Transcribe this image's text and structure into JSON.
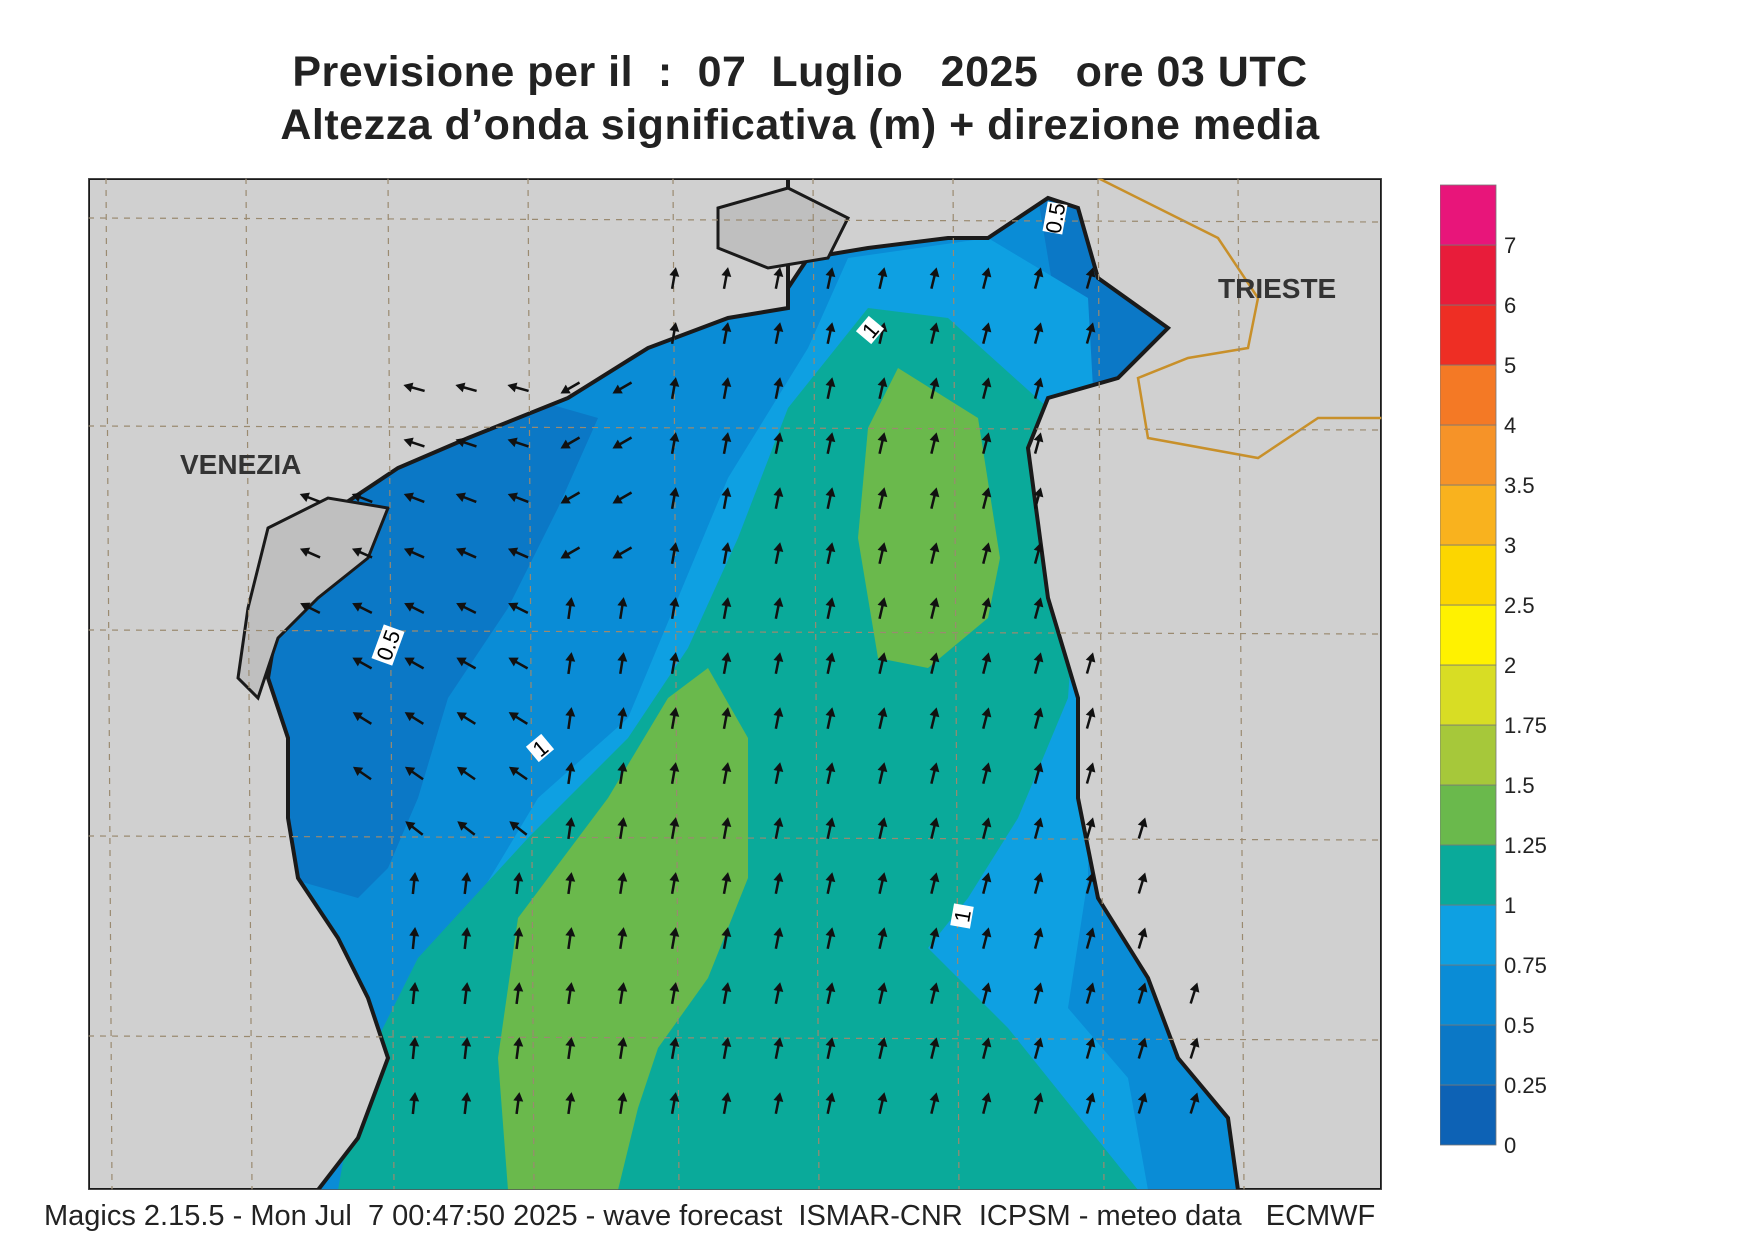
{
  "title": {
    "line1": "Previsione per il  :  07  Luglio   2025   ore 03 UTC",
    "line2": "Altezza d’onda significativa (m) + direzione media"
  },
  "map": {
    "cities": [
      {
        "name": "VENEZIA"
      },
      {
        "name": "TRIESTE"
      }
    ],
    "contour_labels": [
      "0.5",
      "0.5",
      "1",
      "1",
      "1"
    ],
    "background_land_color": "#d0d0d0",
    "coast_color": "#1a1a1a",
    "border_color": "#c8902a",
    "arrow_color": "#111111"
  },
  "colorbar": {
    "levels": [
      "0",
      "0.25",
      "0.5",
      "0.75",
      "1",
      "1.25",
      "1.5",
      "1.75",
      "2",
      "2.5",
      "3",
      "3.5",
      "4",
      "5",
      "6",
      "7"
    ],
    "colors": [
      "#0d62b5",
      "#0b78c6",
      "#0a8cd6",
      "#0ea0e2",
      "#0aaa9a",
      "#6ab94c",
      "#a6c83a",
      "#d8dd24",
      "#fff200",
      "#fcd600",
      "#f9b21e",
      "#f69328",
      "#f47925",
      "#ee2e24",
      "#e81c3a",
      "#e8157a"
    ]
  },
  "footer": {
    "text": "Magics 2.15.5 - Mon Jul  7 00:47:50 2025 - wave forecast  ISMAR-CNR  ICPSM - meteo data   ECMWF"
  }
}
